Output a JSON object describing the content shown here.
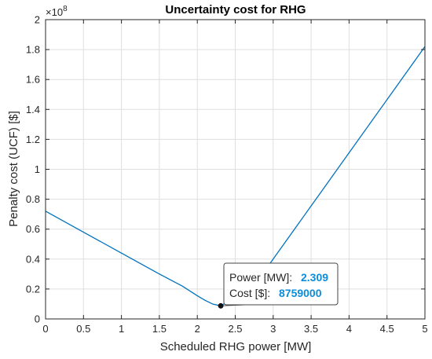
{
  "chart_data": {
    "type": "line",
    "title": "Uncertainty cost for RHG",
    "xlabel": "Scheduled RHG power [MW]",
    "ylabel": "Penalty cost (UCF) [$]",
    "y_exponent_base": "×10",
    "y_exponent_power": "8",
    "xlim": [
      0,
      5
    ],
    "ylim": [
      0,
      2
    ],
    "xticks": [
      0,
      0.5,
      1,
      1.5,
      2,
      2.5,
      3,
      3.5,
      4,
      4.5,
      5
    ],
    "xtick_labels": [
      "0",
      "0.5",
      "1",
      "1.5",
      "2",
      "2.5",
      "3",
      "3.5",
      "4",
      "4.5",
      "5"
    ],
    "yticks": [
      0,
      0.2,
      0.4,
      0.6,
      0.8,
      1,
      1.2,
      1.4,
      1.6,
      1.8,
      2
    ],
    "ytick_labels": [
      "0",
      "0.2",
      "0.4",
      "0.6",
      "0.8",
      "1",
      "1.2",
      "1.4",
      "1.6",
      "1.8",
      "2"
    ],
    "grid": true,
    "line_color": "#0072bd",
    "series": [
      {
        "x": [
          0,
          0.5,
          1,
          1.5,
          1.8,
          2,
          2.1,
          2.2,
          2.309,
          2.5,
          2.8,
          3,
          3.5,
          4,
          4.5,
          5
        ],
        "y": [
          0.72,
          0.58,
          0.44,
          0.3,
          0.22,
          0.155,
          0.125,
          0.1,
          0.0876,
          0.145,
          0.26,
          0.4,
          0.755,
          1.11,
          1.465,
          1.82
        ]
      }
    ],
    "datatip": {
      "x": 2.309,
      "y": 0.0876,
      "label1": "Power [MW]:",
      "value1": "2.309",
      "label2": "Cost [$]:",
      "value2": "8759000"
    }
  }
}
